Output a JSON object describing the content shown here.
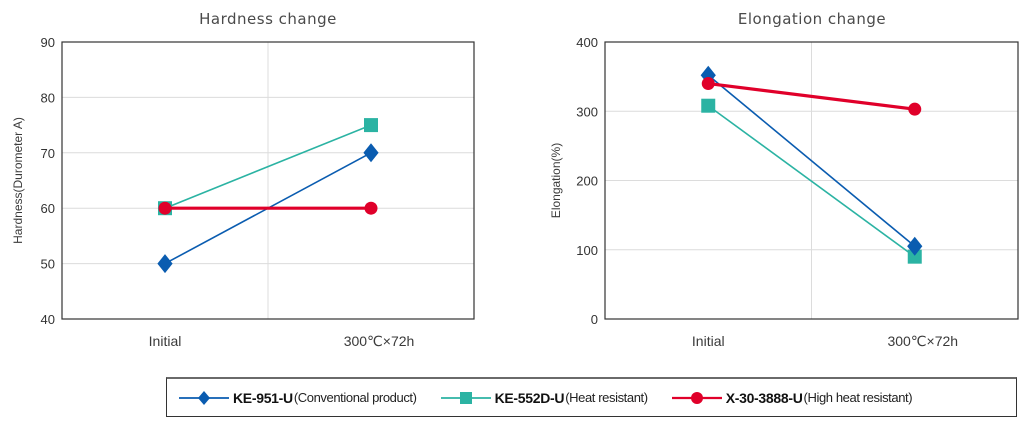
{
  "chart_data": [
    {
      "type": "line",
      "title": "Hardness change",
      "xlabel": "",
      "ylabel": "Hardness(Durometer A)",
      "categories": [
        "Initial",
        "300℃×72h"
      ],
      "ylim": [
        40,
        90
      ],
      "yticks": [
        40,
        50,
        60,
        70,
        80,
        90
      ],
      "grid": true,
      "series": [
        {
          "name": "KE-951-U",
          "values": [
            50,
            70
          ]
        },
        {
          "name": "KE-552D-U",
          "values": [
            60,
            75
          ]
        },
        {
          "name": "X-30-3888-U",
          "values": [
            60,
            60
          ]
        }
      ]
    },
    {
      "type": "line",
      "title": "Elongation change",
      "xlabel": "",
      "ylabel": "Elongation(%)",
      "categories": [
        "Initial",
        "300℃×72h"
      ],
      "ylim": [
        0,
        400
      ],
      "yticks": [
        0,
        100,
        200,
        300,
        400
      ],
      "grid": true,
      "series": [
        {
          "name": "KE-951-U",
          "values": [
            352,
            105
          ]
        },
        {
          "name": "KE-552D-U",
          "values": [
            308,
            90
          ]
        },
        {
          "name": "X-30-3888-U",
          "values": [
            340,
            303
          ]
        }
      ]
    }
  ],
  "legend": {
    "placement": "bottom",
    "items": [
      {
        "name": "KE-951-U",
        "desc": "(Conventional product)",
        "marker": "diamond",
        "color": "#0a5cb0"
      },
      {
        "name": "KE-552D-U",
        "desc": "(Heat resistant)",
        "marker": "square",
        "color": "#2bb3a3"
      },
      {
        "name": "X-30-3888-U",
        "desc": "(High heat resistant)",
        "marker": "circle",
        "color": "#e0002a"
      }
    ]
  }
}
